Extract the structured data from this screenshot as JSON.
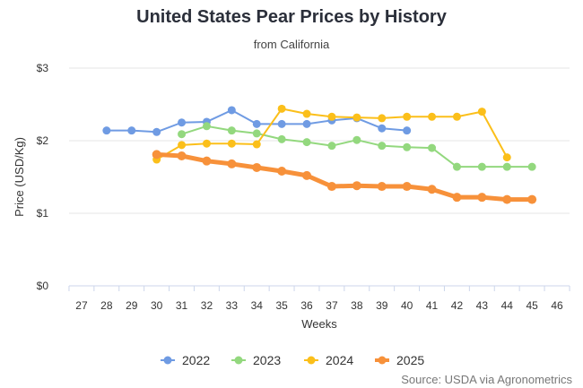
{
  "chart_data": {
    "type": "line",
    "title": "United States Pear Prices by History",
    "subtitle": "from California",
    "xlabel": "Weeks",
    "ylabel": "Price (USD/Kg)",
    "source": "Source: USDA via Agronometrics",
    "xlim": [
      26.5,
      46.5
    ],
    "ylim": [
      0,
      3
    ],
    "x_ticks": [
      27,
      28,
      29,
      30,
      31,
      32,
      33,
      34,
      35,
      36,
      37,
      38,
      39,
      40,
      41,
      42,
      43,
      44,
      45,
      46
    ],
    "y_ticks": [
      {
        "value": 0,
        "label": "$0"
      },
      {
        "value": 1,
        "label": "$1"
      },
      {
        "value": 2,
        "label": "$2"
      },
      {
        "value": 3,
        "label": "$3"
      }
    ],
    "legend_position": "bottom",
    "series": [
      {
        "name": "2022",
        "color": "#6f9be3",
        "width": 2,
        "x": [
          28,
          29,
          30,
          31,
          32,
          33,
          34,
          35,
          36,
          37,
          38,
          39,
          40
        ],
        "values": [
          2.14,
          2.14,
          2.12,
          2.25,
          2.26,
          2.42,
          2.23,
          2.23,
          2.23,
          2.28,
          2.31,
          2.17,
          2.14
        ]
      },
      {
        "name": "2023",
        "color": "#93d87e",
        "width": 2,
        "x": [
          31,
          32,
          33,
          34,
          35,
          36,
          37,
          38,
          39,
          40,
          41,
          42,
          43,
          44,
          45
        ],
        "values": [
          2.09,
          2.2,
          2.14,
          2.1,
          2.02,
          1.98,
          1.93,
          2.01,
          1.93,
          1.91,
          1.9,
          1.64,
          1.64,
          1.64,
          1.64
        ]
      },
      {
        "name": "2024",
        "color": "#fbbf1a",
        "width": 2,
        "x": [
          30,
          31,
          32,
          33,
          34,
          35,
          36,
          37,
          38,
          39,
          40,
          41,
          42,
          43,
          44
        ],
        "values": [
          1.74,
          1.94,
          1.96,
          1.96,
          1.95,
          2.44,
          2.37,
          2.33,
          2.32,
          2.31,
          2.33,
          2.33,
          2.33,
          2.4,
          1.77
        ]
      },
      {
        "name": "2025",
        "color": "#f7913a",
        "width": 5,
        "x": [
          30,
          31,
          32,
          33,
          34,
          35,
          36,
          37,
          38,
          39,
          40,
          41,
          42,
          43,
          44,
          45
        ],
        "values": [
          1.81,
          1.79,
          1.72,
          1.68,
          1.63,
          1.58,
          1.52,
          1.37,
          1.38,
          1.37,
          1.37,
          1.33,
          1.22,
          1.22,
          1.19,
          1.19
        ]
      }
    ]
  }
}
